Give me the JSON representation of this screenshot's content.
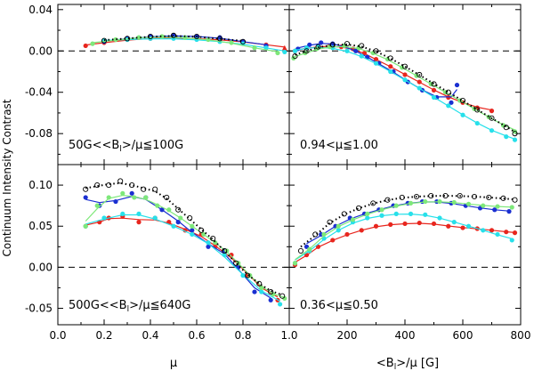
{
  "figure": {
    "ylabel": "Continuum Intensity Contrast",
    "xlabel_left": "μ",
    "xlabel_right": "<B",
    "xlabel_right_sub": "l",
    "xlabel_right_tail": ">/μ [G]",
    "xticks_left": [
      "0.0",
      "0.2",
      "0.4",
      "0.6",
      "0.8",
      "1.0"
    ],
    "xticks_right": [
      "200",
      "400",
      "600",
      "800"
    ],
    "yticks_top": [
      "0.04",
      "0.00",
      "-0.04",
      "-0.08"
    ],
    "yticks_bottom": [
      "0.10",
      "0.05",
      "0.00",
      "-0.05"
    ]
  },
  "panels": [
    {
      "id": "top-left",
      "label_a": "50G<<B",
      "label_sub": "l",
      "label_b": ">/μ≦100G"
    },
    {
      "id": "top-right",
      "label_a": "0.94<μ≦1.00",
      "label_sub": "",
      "label_b": ""
    },
    {
      "id": "bottom-left",
      "label_a": "500G<<B",
      "label_sub": "l",
      "label_b": ">/μ≦640G"
    },
    {
      "id": "bottom-right",
      "label_a": "0.36<μ≦0.50",
      "label_sub": "",
      "label_b": ""
    }
  ],
  "colors": {
    "red": "#e8261e",
    "blue": "#1a2fd1",
    "cyan": "#27e0ea",
    "green": "#7ee87a",
    "black": "#000000"
  },
  "chart_data": [
    {
      "type": "scatter",
      "panel": "top-left",
      "xlim": [
        0,
        1
      ],
      "ylim": [
        -0.11,
        0.045
      ],
      "series": [
        {
          "name": "red",
          "x": [
            0.12,
            0.2,
            0.3,
            0.4,
            0.5,
            0.6,
            0.7,
            0.8,
            0.9,
            0.98
          ],
          "y": [
            0.005,
            0.008,
            0.011,
            0.012,
            0.013,
            0.012,
            0.011,
            0.009,
            0.006,
            0.003
          ]
        },
        {
          "name": "blue",
          "x": [
            0.2,
            0.3,
            0.4,
            0.5,
            0.6,
            0.7,
            0.8,
            0.9
          ],
          "y": [
            0.009,
            0.012,
            0.014,
            0.015,
            0.014,
            0.013,
            0.009,
            0.005
          ]
        },
        {
          "name": "cyan",
          "x": [
            0.2,
            0.3,
            0.4,
            0.5,
            0.6,
            0.7,
            0.8,
            0.9,
            0.98
          ],
          "y": [
            0.01,
            0.011,
            0.012,
            0.012,
            0.011,
            0.009,
            0.007,
            0.003,
            -0.001
          ]
        },
        {
          "name": "green",
          "x": [
            0.15,
            0.25,
            0.35,
            0.45,
            0.55,
            0.65,
            0.75,
            0.85,
            0.95
          ],
          "y": [
            0.007,
            0.011,
            0.013,
            0.014,
            0.013,
            0.011,
            0.008,
            0.003,
            -0.002
          ]
        },
        {
          "name": "black",
          "x": [
            0.2,
            0.3,
            0.4,
            0.5,
            0.6,
            0.7,
            0.8
          ],
          "y": [
            0.01,
            0.012,
            0.014,
            0.015,
            0.014,
            0.012,
            0.009
          ]
        }
      ]
    },
    {
      "type": "scatter",
      "panel": "top-right",
      "xlim": [
        0,
        800
      ],
      "ylim": [
        -0.11,
        0.045
      ],
      "series": [
        {
          "name": "red",
          "x": [
            20,
            60,
            100,
            140,
            180,
            220,
            260,
            300,
            350,
            400,
            450,
            500,
            550,
            600,
            650,
            700
          ],
          "y": [
            0.0,
            0.003,
            0.004,
            0.005,
            0.004,
            0.002,
            -0.002,
            -0.008,
            -0.015,
            -0.023,
            -0.03,
            -0.038,
            -0.045,
            -0.05,
            -0.055,
            -0.058
          ]
        },
        {
          "name": "blue",
          "x": [
            30,
            70,
            110,
            150,
            190,
            230,
            270,
            310,
            360,
            410,
            460,
            510,
            560,
            580
          ],
          "y": [
            0.002,
            0.006,
            0.008,
            0.007,
            0.005,
            0.0,
            -0.006,
            -0.012,
            -0.02,
            -0.03,
            -0.038,
            -0.045,
            -0.05,
            -0.033
          ]
        },
        {
          "name": "cyan",
          "x": [
            20,
            60,
            100,
            150,
            200,
            250,
            300,
            350,
            400,
            450,
            500,
            550,
            600,
            650,
            700,
            750,
            780
          ],
          "y": [
            0.0,
            0.003,
            0.004,
            0.003,
            0.0,
            -0.005,
            -0.012,
            -0.02,
            -0.028,
            -0.036,
            -0.045,
            -0.053,
            -0.062,
            -0.07,
            -0.077,
            -0.083,
            -0.086
          ]
        },
        {
          "name": "green",
          "x": [
            15,
            55,
            95,
            140,
            190,
            240,
            290,
            340,
            390,
            440,
            490,
            540,
            590,
            640,
            690,
            740,
            780
          ],
          "y": [
            -0.007,
            -0.002,
            0.002,
            0.004,
            0.005,
            0.003,
            -0.002,
            -0.008,
            -0.016,
            -0.024,
            -0.032,
            -0.04,
            -0.048,
            -0.056,
            -0.064,
            -0.072,
            -0.078
          ]
        },
        {
          "name": "black",
          "x": [
            20,
            60,
            100,
            150,
            200,
            250,
            300,
            350,
            400,
            450,
            500,
            550,
            600,
            650,
            700,
            750,
            780
          ],
          "y": [
            -0.005,
            0.0,
            0.004,
            0.006,
            0.007,
            0.005,
            0.0,
            -0.007,
            -0.015,
            -0.023,
            -0.032,
            -0.04,
            -0.048,
            -0.057,
            -0.065,
            -0.074,
            -0.08
          ]
        }
      ]
    },
    {
      "type": "scatter",
      "panel": "bottom-left",
      "xlim": [
        0,
        1
      ],
      "ylim": [
        -0.07,
        0.125
      ],
      "series": [
        {
          "name": "red",
          "x": [
            0.12,
            0.18,
            0.22,
            0.28,
            0.35,
            0.42,
            0.48,
            0.55,
            0.62,
            0.68,
            0.75,
            0.82,
            0.88,
            0.95
          ],
          "y": [
            0.05,
            0.055,
            0.06,
            0.062,
            0.055,
            0.06,
            0.055,
            0.045,
            0.04,
            0.025,
            0.015,
            -0.01,
            -0.025,
            -0.04
          ]
        },
        {
          "name": "blue",
          "x": [
            0.12,
            0.18,
            0.25,
            0.32,
            0.38,
            0.45,
            0.52,
            0.58,
            0.65,
            0.72,
            0.78,
            0.85,
            0.92
          ],
          "y": [
            0.085,
            0.075,
            0.08,
            0.09,
            0.085,
            0.07,
            0.055,
            0.045,
            0.025,
            0.02,
            0.0,
            -0.03,
            -0.04
          ]
        },
        {
          "name": "cyan",
          "x": [
            0.12,
            0.2,
            0.28,
            0.35,
            0.42,
            0.5,
            0.58,
            0.65,
            0.72,
            0.8,
            0.88,
            0.96
          ],
          "y": [
            0.05,
            0.06,
            0.065,
            0.065,
            0.06,
            0.05,
            0.04,
            0.03,
            0.015,
            -0.01,
            -0.03,
            -0.045
          ]
        },
        {
          "name": "green",
          "x": [
            0.12,
            0.17,
            0.22,
            0.28,
            0.33,
            0.38,
            0.43,
            0.48,
            0.53,
            0.58,
            0.63,
            0.68,
            0.73,
            0.78,
            0.83,
            0.88,
            0.93,
            0.98
          ],
          "y": [
            0.05,
            0.075,
            0.085,
            0.09,
            0.085,
            0.085,
            0.075,
            0.07,
            0.06,
            0.05,
            0.04,
            0.03,
            0.02,
            0.005,
            -0.01,
            -0.025,
            -0.033,
            -0.038
          ]
        },
        {
          "name": "black",
          "x": [
            0.12,
            0.17,
            0.22,
            0.27,
            0.32,
            0.37,
            0.42,
            0.47,
            0.52,
            0.57,
            0.62,
            0.67,
            0.72,
            0.77,
            0.82,
            0.87,
            0.92,
            0.97
          ],
          "y": [
            0.095,
            0.1,
            0.1,
            0.105,
            0.1,
            0.095,
            0.095,
            0.085,
            0.07,
            0.06,
            0.045,
            0.035,
            0.02,
            0.005,
            -0.01,
            -0.02,
            -0.03,
            -0.035
          ]
        }
      ]
    },
    {
      "type": "scatter",
      "panel": "bottom-right",
      "xlim": [
        0,
        800
      ],
      "ylim": [
        -0.07,
        0.125
      ],
      "series": [
        {
          "name": "red",
          "x": [
            20,
            60,
            100,
            150,
            200,
            250,
            300,
            350,
            400,
            450,
            500,
            550,
            600,
            650,
            700,
            750,
            780
          ],
          "y": [
            0.003,
            0.015,
            0.025,
            0.033,
            0.04,
            0.045,
            0.05,
            0.052,
            0.053,
            0.054,
            0.053,
            0.05,
            0.048,
            0.047,
            0.045,
            0.043,
            0.042
          ]
        },
        {
          "name": "blue",
          "x": [
            60,
            110,
            160,
            210,
            260,
            310,
            360,
            410,
            460,
            510,
            560,
            610,
            660,
            710,
            760
          ],
          "y": [
            0.025,
            0.04,
            0.05,
            0.06,
            0.065,
            0.07,
            0.075,
            0.078,
            0.08,
            0.08,
            0.078,
            0.075,
            0.072,
            0.07,
            0.068
          ]
        },
        {
          "name": "cyan",
          "x": [
            20,
            70,
            120,
            170,
            220,
            270,
            320,
            370,
            420,
            470,
            520,
            570,
            620,
            670,
            720,
            770
          ],
          "y": [
            0.005,
            0.02,
            0.035,
            0.045,
            0.055,
            0.06,
            0.063,
            0.065,
            0.065,
            0.064,
            0.06,
            0.055,
            0.05,
            0.045,
            0.04,
            0.033
          ]
        },
        {
          "name": "green",
          "x": [
            20,
            70,
            120,
            170,
            220,
            270,
            320,
            370,
            420,
            470,
            520,
            570,
            620,
            670,
            720,
            770
          ],
          "y": [
            0.005,
            0.022,
            0.04,
            0.05,
            0.058,
            0.065,
            0.07,
            0.075,
            0.078,
            0.08,
            0.08,
            0.079,
            0.077,
            0.075,
            0.074,
            0.073
          ]
        },
        {
          "name": "black",
          "x": [
            40,
            90,
            140,
            190,
            240,
            290,
            340,
            390,
            440,
            490,
            540,
            590,
            640,
            690,
            740,
            780
          ],
          "y": [
            0.02,
            0.04,
            0.055,
            0.065,
            0.072,
            0.078,
            0.082,
            0.085,
            0.086,
            0.087,
            0.087,
            0.087,
            0.086,
            0.085,
            0.084,
            0.082
          ]
        }
      ]
    }
  ]
}
